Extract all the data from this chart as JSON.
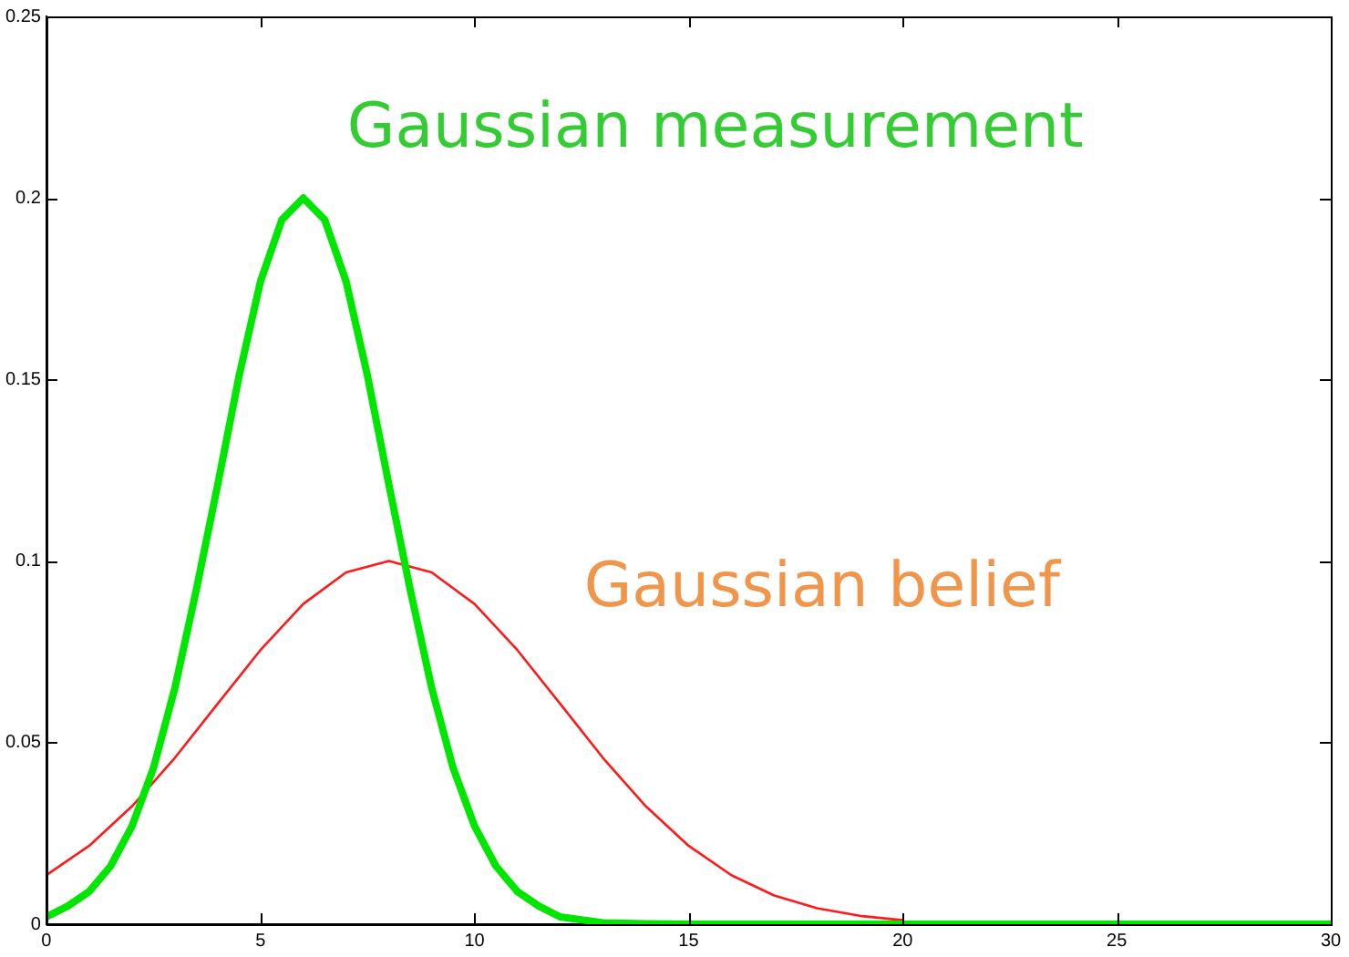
{
  "chart_data": {
    "type": "line",
    "series": [
      {
        "name": "Gaussian measurement",
        "color": "#00e600",
        "x": [
          0,
          0.5,
          1,
          1.5,
          2,
          2.5,
          3,
          3.5,
          4,
          4.5,
          5,
          5.5,
          6,
          6.5,
          7,
          7.5,
          8,
          8.5,
          9,
          9.5,
          10,
          10.5,
          11,
          11.5,
          12,
          13,
          14,
          15,
          30
        ],
        "values": [
          0.002,
          0.005,
          0.009,
          0.016,
          0.027,
          0.043,
          0.065,
          0.092,
          0.121,
          0.151,
          0.177,
          0.194,
          0.2,
          0.194,
          0.177,
          0.151,
          0.121,
          0.092,
          0.065,
          0.043,
          0.027,
          0.016,
          0.009,
          0.005,
          0.002,
          0.0004,
          0.0001,
          0,
          0
        ]
      },
      {
        "name": "Gaussian belief",
        "color": "#ff1a1a",
        "x": [
          0,
          1,
          2,
          3,
          4,
          5,
          6,
          7,
          8,
          9,
          10,
          11,
          12,
          13,
          14,
          15,
          16,
          17,
          18,
          19,
          20
        ],
        "values": [
          0.0135,
          0.0216,
          0.0325,
          0.0458,
          0.0607,
          0.0755,
          0.0882,
          0.0969,
          0.1,
          0.0969,
          0.0882,
          0.0755,
          0.0607,
          0.0458,
          0.0325,
          0.0216,
          0.0135,
          0.0079,
          0.0044,
          0.0023,
          0.0011
        ]
      }
    ],
    "xlim": [
      0,
      30
    ],
    "xticks": [
      0,
      5,
      10,
      15,
      20,
      25,
      30
    ],
    "ylim": [
      0,
      0.25
    ],
    "yticks": [
      0,
      0.05,
      0.1,
      0.15,
      0.2,
      0.25
    ],
    "grid": false,
    "legend": false,
    "marker": "none",
    "line_style": "solid"
  }
}
